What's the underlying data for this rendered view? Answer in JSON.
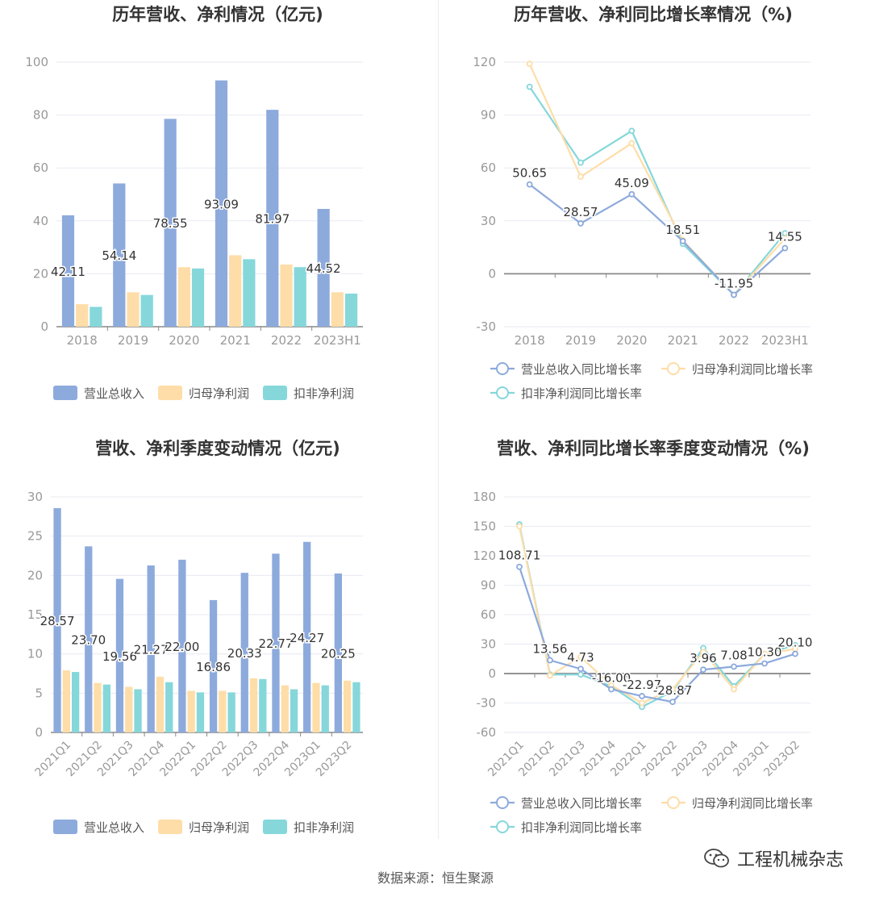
{
  "colors": {
    "revenue": "#8daadc",
    "parent_profit": "#fedda8",
    "deducted_profit": "#85d7da",
    "axis": "#999999",
    "grid": "#e8eaf2"
  },
  "chart_data": [
    {
      "type": "bar",
      "title": "历年营收、净利情况（亿元)",
      "categories": [
        "2018",
        "2019",
        "2020",
        "2021",
        "2022",
        "2023H1"
      ],
      "ylim": [
        0,
        100
      ],
      "yticks": [
        0,
        20,
        40,
        60,
        80,
        100
      ],
      "series": [
        {
          "name": "营业总收入",
          "values": [
            42.11,
            54.14,
            78.55,
            93.09,
            81.97,
            44.52
          ],
          "labels": [
            "42.11",
            "54.14",
            "78.55",
            "93.09",
            "81.97",
            "44.52"
          ]
        },
        {
          "name": "归母净利润",
          "values": [
            8.5,
            13.0,
            22.5,
            27.0,
            23.5,
            13.0
          ]
        },
        {
          "name": "扣非净利润",
          "values": [
            7.5,
            12.0,
            22.0,
            25.5,
            22.5,
            12.5
          ]
        }
      ],
      "legend_position": "bottom",
      "grid": true
    },
    {
      "type": "line",
      "title": "历年营收、净利同比增长率情况（%)",
      "categories": [
        "2018",
        "2019",
        "2020",
        "2021",
        "2022",
        "2023H1"
      ],
      "ylim": [
        -30,
        120
      ],
      "yticks": [
        -30,
        0,
        30,
        60,
        90,
        120
      ],
      "series": [
        {
          "name": "营业总收入同比增长率",
          "values": [
            50.65,
            28.57,
            45.09,
            18.51,
            -11.95,
            14.55
          ],
          "labels": [
            "50.65",
            "28.57",
            "45.09",
            "18.51",
            "-11.95",
            "14.55"
          ]
        },
        {
          "name": "归母净利润同比增长率",
          "values": [
            119,
            55,
            74,
            19,
            -12,
            20
          ]
        },
        {
          "name": "扣非净利润同比增长率",
          "values": [
            106,
            63,
            81,
            17,
            -12,
            23
          ]
        }
      ],
      "legend_position": "bottom",
      "grid": true
    },
    {
      "type": "bar",
      "title": "营收、净利季度变动情况（亿元)",
      "categories": [
        "2021Q1",
        "2021Q2",
        "2021Q3",
        "2021Q4",
        "2022Q1",
        "2022Q2",
        "2022Q3",
        "2022Q4",
        "2023Q1",
        "2023Q2"
      ],
      "ylim": [
        0,
        30
      ],
      "yticks": [
        0,
        5,
        10,
        15,
        20,
        25,
        30
      ],
      "series": [
        {
          "name": "营业总收入",
          "values": [
            28.57,
            23.7,
            19.56,
            21.27,
            22.0,
            16.86,
            20.33,
            22.77,
            24.27,
            20.25
          ],
          "labels": [
            "28.57",
            "23.70",
            "19.56",
            "21.27",
            "22.00",
            "16.86",
            "20.33",
            "22.77",
            "24.27",
            "20.25"
          ]
        },
        {
          "name": "归母净利润",
          "values": [
            7.9,
            6.3,
            5.8,
            7.1,
            5.3,
            5.3,
            6.9,
            6.0,
            6.3,
            6.6
          ]
        },
        {
          "name": "扣非净利润",
          "values": [
            7.7,
            6.1,
            5.5,
            6.4,
            5.1,
            5.1,
            6.8,
            5.5,
            6.0,
            6.4
          ]
        }
      ],
      "legend_position": "bottom",
      "grid": true
    },
    {
      "type": "line",
      "title": "营收、净利同比增长率季度变动情况（%)",
      "categories": [
        "2021Q1",
        "2021Q2",
        "2021Q3",
        "2021Q4",
        "2022Q1",
        "2022Q2",
        "2022Q3",
        "2022Q4",
        "2023Q1",
        "2023Q2"
      ],
      "ylim": [
        -60,
        180
      ],
      "yticks": [
        -60,
        -30,
        0,
        30,
        60,
        90,
        120,
        150,
        180
      ],
      "series": [
        {
          "name": "营业总收入同比增长率",
          "values": [
            108.71,
            13.56,
            4.73,
            -16.0,
            -22.97,
            -28.87,
            3.96,
            7.08,
            10.3,
            20.1
          ],
          "labels": [
            "108.71",
            "13.56",
            "4.73",
            "-16.00",
            "-22.97",
            "-28.87",
            "3.96",
            "7.08",
            "10.30",
            "20.10"
          ]
        },
        {
          "name": "归母净利润同比增长率",
          "values": [
            150,
            -2,
            17,
            -12,
            -30,
            -16,
            22,
            -16,
            20,
            25
          ]
        },
        {
          "name": "扣非净利润同比增长率",
          "values": [
            152,
            -1,
            -1,
            -13,
            -34,
            -18,
            26,
            -13,
            20,
            29
          ]
        }
      ],
      "legend_position": "bottom",
      "grid": true
    }
  ],
  "footer": {
    "source": "数据来源：恒生聚源",
    "watermark": "工程机械杂志",
    "watermark_icon": "wechat-icon"
  }
}
